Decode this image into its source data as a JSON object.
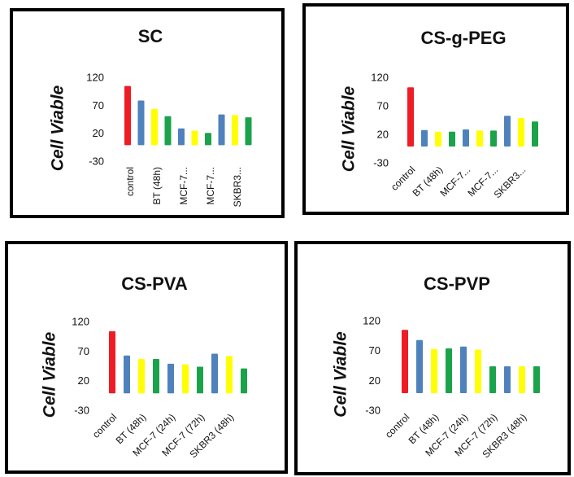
{
  "chart_data": [
    {
      "type": "bar",
      "title": "SC",
      "y_label": "Cell Viable",
      "categories": [
        "control",
        null,
        "BT (48h)",
        null,
        "MCF-7...",
        null,
        "MCF-7...",
        null,
        "SKBR3...",
        null
      ],
      "values": [
        106,
        80,
        65,
        52,
        30,
        26,
        22,
        55,
        54,
        50
      ],
      "colors": [
        "#ee1c24",
        "#4f81bd",
        "#ffff00",
        "#1aa34a",
        "#4f81bd",
        "#ffff00",
        "#1aa34a",
        "#4f81bd",
        "#ffff00",
        "#1aa34a"
      ],
      "ylim": [
        -30,
        120
      ],
      "yticks": [
        -30,
        20,
        70,
        120
      ],
      "x_label_rotation": -90
    },
    {
      "type": "bar",
      "title": "CS-g-PEG",
      "y_label": "Cell Viable",
      "categories": [
        "control",
        null,
        "BT (48h)",
        null,
        "MCF-7...",
        null,
        "MCF-7...",
        null,
        "SKBR3...",
        null
      ],
      "values": [
        104,
        29,
        26,
        26,
        30,
        28,
        28,
        54,
        50,
        44
      ],
      "colors": [
        "#ee1c24",
        "#4f81bd",
        "#ffff00",
        "#1aa34a",
        "#4f81bd",
        "#ffff00",
        "#1aa34a",
        "#4f81bd",
        "#ffff00",
        "#1aa34a"
      ],
      "ylim": [
        -30,
        120
      ],
      "yticks": [
        -30,
        20,
        70,
        120
      ],
      "x_label_rotation": -45
    },
    {
      "type": "bar",
      "title": "CS-PVA",
      "y_label": "Cell Viable",
      "categories": [
        "control",
        null,
        "BT (48h)",
        null,
        "MCF-7 (24h)",
        null,
        "MCF-7 (72h)",
        null,
        "SKBR3 (48h)",
        null
      ],
      "values": [
        105,
        64,
        58,
        58,
        50,
        49,
        45,
        67,
        63,
        42
      ],
      "colors": [
        "#ee1c24",
        "#4f81bd",
        "#ffff00",
        "#1aa34a",
        "#4f81bd",
        "#ffff00",
        "#1aa34a",
        "#4f81bd",
        "#ffff00",
        "#1aa34a"
      ],
      "ylim": [
        -30,
        120
      ],
      "yticks": [
        -30,
        20,
        70,
        120
      ],
      "x_label_rotation": -45
    },
    {
      "type": "bar",
      "title": "CS-PVP",
      "y_label": "Cell Viable",
      "categories": [
        "control",
        null,
        "BT (48h)",
        null,
        "MCF-7 (24h)",
        null,
        "MCF-7 (72h)",
        null,
        "SKBR3 (48h)",
        null
      ],
      "values": [
        106,
        89,
        74,
        75,
        78,
        73,
        45,
        45,
        45,
        45
      ],
      "colors": [
        "#ee1c24",
        "#4f81bd",
        "#ffff00",
        "#1aa34a",
        "#4f81bd",
        "#ffff00",
        "#1aa34a",
        "#4f81bd",
        "#ffff00",
        "#1aa34a"
      ],
      "ylim": [
        -30,
        120
      ],
      "yticks": [
        -30,
        20,
        70,
        120
      ],
      "x_label_rotation": -45
    }
  ]
}
